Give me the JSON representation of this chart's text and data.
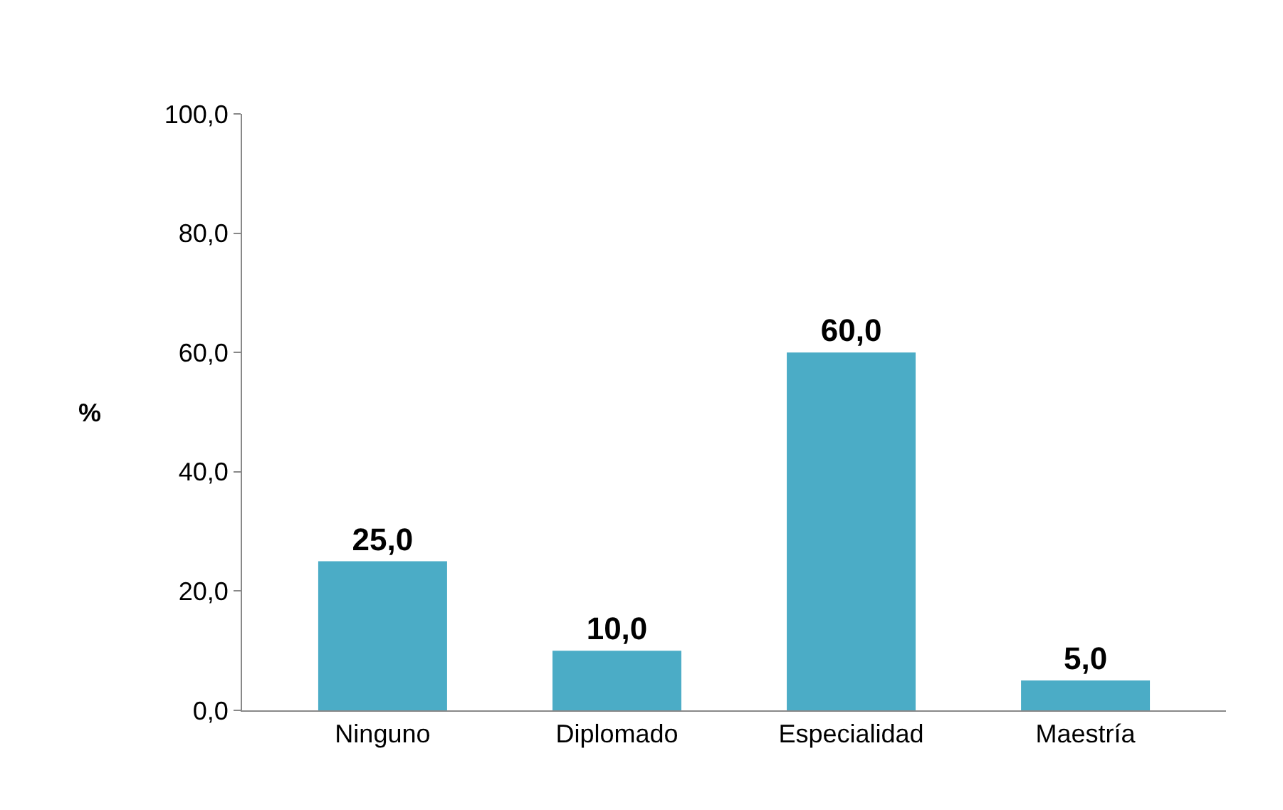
{
  "chart_data": {
    "type": "bar",
    "categories": [
      "Ninguno",
      "Diplomado",
      "Especialidad",
      "Maestría"
    ],
    "values": [
      25,
      10,
      60,
      5
    ],
    "value_labels": [
      "25,0",
      "10,0",
      "60,0",
      "5,0"
    ],
    "color": "#4bacc6",
    "ylabel": "%",
    "ylim": [
      0,
      100
    ],
    "yticks": [
      {
        "value": 0,
        "label": "0,0"
      },
      {
        "value": 20,
        "label": "20,0"
      },
      {
        "value": 40,
        "label": "40,0"
      },
      {
        "value": 60,
        "label": "60,0"
      },
      {
        "value": 80,
        "label": "80,0"
      },
      {
        "value": 100,
        "label": "100,0"
      }
    ],
    "legend": false
  }
}
